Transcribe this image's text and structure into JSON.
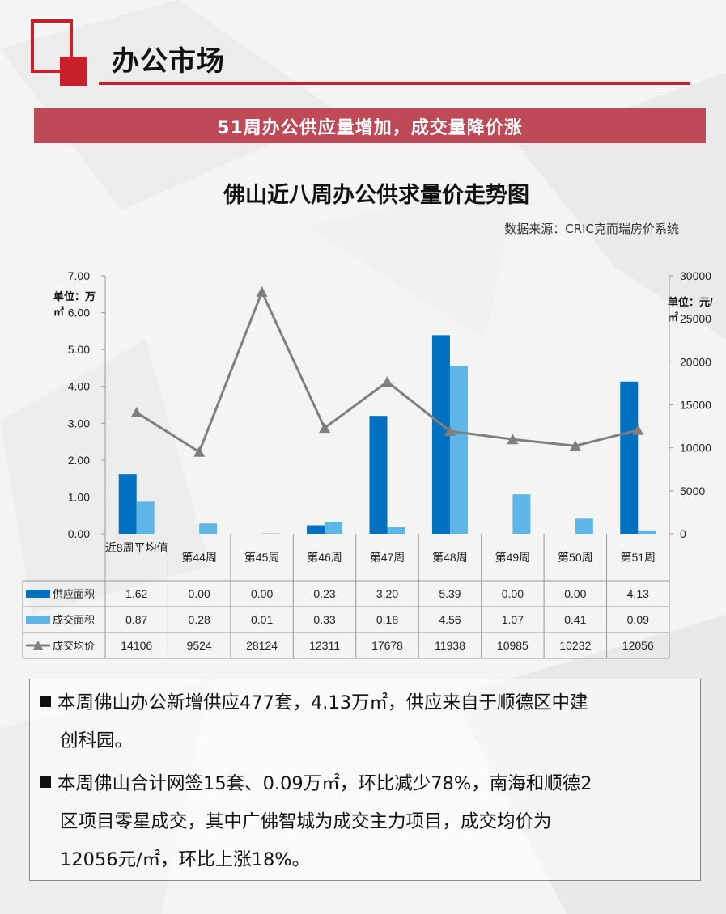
{
  "header": {
    "section_title": "办公市场",
    "banner": "51周办公供应量增加，成交量降价涨"
  },
  "colors": {
    "brand_red": "#c8202a",
    "banner": "#bf4a57",
    "supply": "#0070c0",
    "deal_area": "#5db6e6",
    "price_line": "#7f7f7f"
  },
  "chart_data": {
    "type": "bar",
    "title": "佛山近八周办公供求量价走势图",
    "source": "数据来源：CRIC克而瑞房价系统",
    "left_unit": "单位：万㎡",
    "right_unit": "单位：元/㎡",
    "left_unit_line1": "单位：万",
    "left_unit_line2": "㎡",
    "right_unit_line1": "单位：元/",
    "right_unit_line2": "㎡",
    "categories": [
      "近8周平均值",
      "第44周",
      "第45周",
      "第46周",
      "第47周",
      "第48周",
      "第49周",
      "第50周",
      "第51周"
    ],
    "series": [
      {
        "name": "供应面积",
        "type": "bar",
        "axis": "left",
        "values": [
          1.62,
          0.0,
          0.0,
          0.23,
          3.2,
          5.39,
          0.0,
          0.0,
          4.13
        ],
        "labels": [
          "1.62",
          "0.00",
          "0.00",
          "0.23",
          "3.20",
          "5.39",
          "0.00",
          "0.00",
          "4.13"
        ]
      },
      {
        "name": "成交面积",
        "type": "bar",
        "axis": "left",
        "values": [
          0.87,
          0.28,
          0.01,
          0.33,
          0.18,
          4.56,
          1.07,
          0.41,
          0.09
        ],
        "labels": [
          "0.87",
          "0.28",
          "0.01",
          "0.33",
          "0.18",
          "4.56",
          "1.07",
          "0.41",
          "0.09"
        ]
      },
      {
        "name": "成交均价",
        "type": "line",
        "axis": "right",
        "values": [
          14106,
          9524,
          28124,
          12311,
          17678,
          11938,
          10985,
          10232,
          12056
        ],
        "labels": [
          "14106",
          "9524",
          "28124",
          "12311",
          "17678",
          "11938",
          "10985",
          "10232",
          "12056"
        ]
      }
    ],
    "ylim_left": [
      0,
      7
    ],
    "ylim_right": [
      0,
      30000
    ],
    "left_ticks": [
      "0.00",
      "1.00",
      "2.00",
      "3.00",
      "4.00",
      "5.00",
      "6.00",
      "7.00"
    ],
    "right_ticks": [
      "0",
      "5000",
      "10000",
      "15000",
      "20000",
      "25000",
      "30000"
    ],
    "grid": false,
    "legend": "data-table"
  },
  "notes": {
    "item1_line1": "本周佛山办公新增供应477套，4.13万㎡，供应来自于顺德区中建",
    "item1_line2": "创科园。",
    "item2_line1": "本周佛山合计网签15套、0.09万㎡，环比减少78%，南海和顺德2",
    "item2_line2": "区项目零星成交，其中广佛智城为成交主力项目，成交均价为",
    "item2_line3": "12056元/㎡，环比上涨18%。"
  }
}
